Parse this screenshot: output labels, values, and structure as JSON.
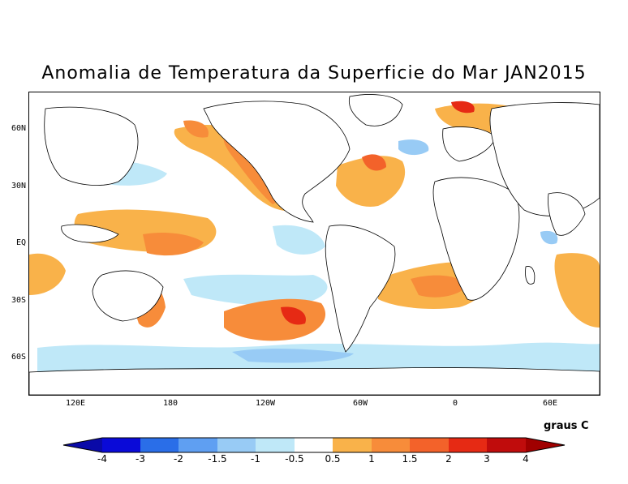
{
  "title": "Anomalia de Temperatura da Superficie do Mar JAN2015",
  "units": "graus C",
  "lat_labels": [
    "60N",
    "30N",
    "EQ",
    "30S",
    "60S"
  ],
  "lon_labels": [
    "120E",
    "180",
    "120W",
    "60W",
    "0",
    "60E"
  ],
  "colorbar": {
    "labels": [
      "-4",
      "-3",
      "-2",
      "-1.5",
      "-1",
      "-0.5",
      "0.5",
      "1",
      "1.5",
      "2",
      "3",
      "4"
    ],
    "colors": [
      "#0a0aa8",
      "#0a0ad8",
      "#2a6ee8",
      "#5f9ff2",
      "#98cbf5",
      "#bfe8f8",
      "#ffffff",
      "#f9b24a",
      "#f78c3a",
      "#f3622a",
      "#e62a14",
      "#c00c0c",
      "#a00000"
    ]
  },
  "colors": {
    "land": "#ffffff",
    "coast": "#000000"
  }
}
